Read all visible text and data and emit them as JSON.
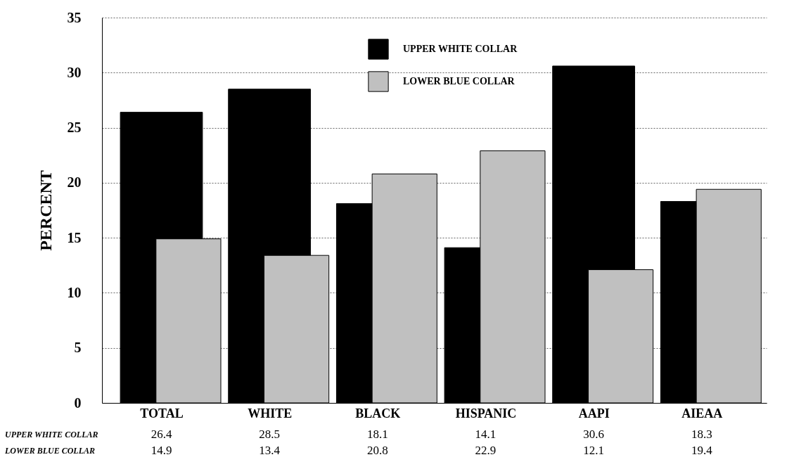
{
  "chart_data": {
    "type": "bar",
    "ylabel": "PERCENT",
    "categories": [
      "TOTAL",
      "WHITE",
      "BLACK",
      "HISPANIC",
      "AAPI",
      "AIEAA"
    ],
    "series": [
      {
        "name": "UPPER WHITE COLLAR",
        "color": "#000000",
        "values": [
          26.4,
          28.5,
          18.1,
          14.1,
          30.6,
          18.3
        ]
      },
      {
        "name": "LOWER BLUE COLLAR",
        "color": "#c0c0c0",
        "values": [
          14.9,
          13.4,
          20.8,
          22.9,
          12.1,
          19.4
        ]
      }
    ],
    "ylim": [
      0,
      35
    ],
    "yticks": [
      0,
      5,
      10,
      15,
      20,
      25,
      30,
      35
    ],
    "grid": "y",
    "legend": "top",
    "data_labels": true
  }
}
